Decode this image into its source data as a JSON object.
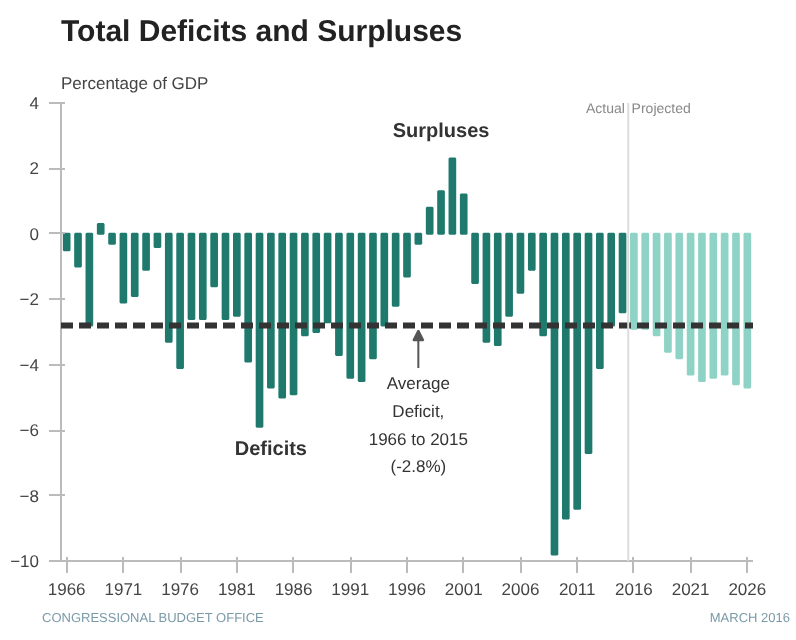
{
  "chart_data": {
    "type": "bar",
    "title": "Total Deficits and Surpluses",
    "ylabel": "Percentage of GDP",
    "series": [
      {
        "color": "#1f7a6d",
        "x": [
          1966,
          1967,
          1968,
          1969,
          1970,
          1971,
          1972,
          1973,
          1974,
          1975,
          1976,
          1977,
          1978,
          1979,
          1980,
          1981,
          1982,
          1983,
          1984,
          1985,
          1986,
          1987,
          1988,
          1989,
          1990,
          1991,
          1992,
          1993,
          1994,
          1995,
          1996,
          1997,
          1998,
          1999,
          2000,
          2001,
          2002,
          2003,
          2004,
          2005,
          2006,
          2007,
          2008,
          2009,
          2010,
          2011,
          2012,
          2013,
          2014,
          2015
        ],
        "values": [
          -0.5,
          -1.0,
          -2.8,
          0.3,
          -0.3,
          -2.1,
          -1.9,
          -1.1,
          -0.4,
          -3.3,
          -4.1,
          -2.6,
          -2.6,
          -1.6,
          -2.6,
          -2.5,
          -3.9,
          -5.9,
          -4.7,
          -5.0,
          -4.9,
          -3.1,
          -3.0,
          -2.7,
          -3.7,
          -4.4,
          -4.5,
          -3.8,
          -2.8,
          -2.2,
          -1.3,
          -0.3,
          0.8,
          1.3,
          2.3,
          1.2,
          -1.5,
          -3.3,
          -3.4,
          -2.5,
          -1.8,
          -1.1,
          -3.1,
          -9.8,
          -8.7,
          -8.4,
          -6.7,
          -4.1,
          -2.8,
          -2.4
        ]
      },
      {
        "color": "#8ed3c5",
        "x": [
          2016,
          2017,
          2018,
          2019,
          2020,
          2021,
          2022,
          2023,
          2024,
          2025,
          2026
        ],
        "values": [
          -2.9,
          -2.9,
          -3.1,
          -3.6,
          -3.8,
          -4.3,
          -4.5,
          -4.4,
          -4.3,
          -4.6,
          -4.7
        ]
      }
    ],
    "xlim": [
      1965.5,
      2026.5
    ],
    "ylim": [
      -10,
      4
    ],
    "xticks": [
      1966,
      1971,
      1976,
      1981,
      1986,
      1991,
      1996,
      2001,
      2006,
      2011,
      2016,
      2021,
      2026
    ],
    "yticks": [
      -10,
      -8,
      -6,
      -4,
      -2,
      0,
      2,
      4
    ],
    "grid": false,
    "ref_lines": [
      {
        "axis": "y",
        "value": -2.8,
        "label": "Average\nDeficit,\n1966 to 2015\n(-2.8%)",
        "color": "#333333",
        "line_style": "dashed"
      },
      {
        "axis": "x",
        "value": 2015.5,
        "color": "#dddddd",
        "line_style": "solid"
      }
    ],
    "annotations": [
      "Deficits",
      "Surpluses",
      "Actual",
      "Projected",
      "CONGRESSIONAL BUDGET OFFICE",
      "MARCH 2016"
    ]
  }
}
